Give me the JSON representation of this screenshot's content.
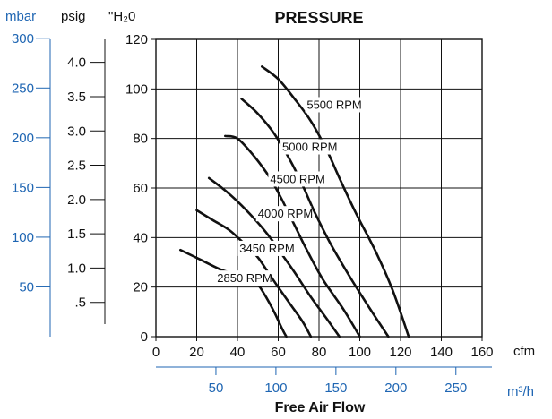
{
  "colors": {
    "ink": "#111111",
    "metric_axis": "#1f66b3",
    "grid": "#111111"
  },
  "chart_data": {
    "type": "line",
    "title": "PRESSURE",
    "xlabel": "Free Air Flow",
    "x_units": {
      "primary": "cfm",
      "secondary": "m³/h"
    },
    "y_units": {
      "primary": "\"H₂0",
      "secondary": "psig",
      "tertiary": "mbar"
    },
    "xlim": [
      0,
      160
    ],
    "ylim": [
      0,
      120
    ],
    "grid": true,
    "x_ticks": [
      "0",
      "20",
      "40",
      "60",
      "80",
      "100",
      "120",
      "140",
      "160"
    ],
    "y_ticks": [
      "0",
      "20",
      "40",
      "60",
      "80",
      "100",
      "120"
    ],
    "psig_ticks": [
      {
        "label": ".5",
        "value": 0.5
      },
      {
        "label": "1.0",
        "value": 1.0
      },
      {
        "label": "1.5",
        "value": 1.5
      },
      {
        "label": "2.0",
        "value": 2.0
      },
      {
        "label": "2.5",
        "value": 2.5
      },
      {
        "label": "3.0",
        "value": 3.0
      },
      {
        "label": "3.5",
        "value": 3.5
      },
      {
        "label": "4.0",
        "value": 4.0
      }
    ],
    "mbar_ticks": [
      {
        "label": "50",
        "value": 50
      },
      {
        "label": "100",
        "value": 100
      },
      {
        "label": "150",
        "value": 150
      },
      {
        "label": "200",
        "value": 200
      },
      {
        "label": "250",
        "value": 250
      },
      {
        "label": "300",
        "value": 300
      }
    ],
    "m3h_ticks": [
      {
        "label": "50",
        "value": 50
      },
      {
        "label": "100",
        "value": 100
      },
      {
        "label": "150",
        "value": 150
      },
      {
        "label": "200",
        "value": 200
      },
      {
        "label": "250",
        "value": 250
      }
    ],
    "series": [
      {
        "name": "2850 RPM",
        "points": [
          [
            12,
            35
          ],
          [
            22,
            31
          ],
          [
            32,
            27
          ],
          [
            40,
            25
          ],
          [
            46,
            23
          ],
          [
            50,
            21
          ],
          [
            54,
            16
          ],
          [
            58,
            10
          ],
          [
            62,
            3
          ],
          [
            64,
            0
          ]
        ],
        "label_at": [
          30,
          22
        ]
      },
      {
        "name": "3450 RPM",
        "points": [
          [
            20,
            51
          ],
          [
            28,
            47
          ],
          [
            36,
            43
          ],
          [
            44,
            37
          ],
          [
            50,
            32
          ],
          [
            55,
            26
          ],
          [
            60,
            20
          ],
          [
            66,
            13
          ],
          [
            72,
            6
          ],
          [
            76,
            0
          ]
        ],
        "label_at": [
          41,
          34
        ]
      },
      {
        "name": "4000 RPM",
        "points": [
          [
            26,
            64
          ],
          [
            34,
            59
          ],
          [
            42,
            53
          ],
          [
            50,
            46
          ],
          [
            56,
            40
          ],
          [
            62,
            33
          ],
          [
            68,
            26
          ],
          [
            76,
            16
          ],
          [
            84,
            7
          ],
          [
            90,
            0
          ]
        ],
        "label_at": [
          50,
          48
        ]
      },
      {
        "name": "4500 RPM",
        "points": [
          [
            34,
            81
          ],
          [
            40,
            80
          ],
          [
            48,
            73
          ],
          [
            56,
            64
          ],
          [
            62,
            55
          ],
          [
            68,
            45
          ],
          [
            74,
            35
          ],
          [
            82,
            23
          ],
          [
            92,
            11
          ],
          [
            100,
            0
          ]
        ],
        "label_at": [
          56,
          62
        ]
      },
      {
        "name": "5000 RPM",
        "points": [
          [
            42,
            96
          ],
          [
            50,
            90
          ],
          [
            58,
            82
          ],
          [
            66,
            71
          ],
          [
            72,
            61
          ],
          [
            78,
            50
          ],
          [
            86,
            37
          ],
          [
            96,
            23
          ],
          [
            106,
            10
          ],
          [
            114,
            0
          ]
        ],
        "label_at": [
          62,
          75
        ]
      },
      {
        "name": "5500 RPM",
        "points": [
          [
            52,
            109
          ],
          [
            60,
            104
          ],
          [
            68,
            96
          ],
          [
            76,
            87
          ],
          [
            84,
            75
          ],
          [
            90,
            64
          ],
          [
            98,
            50
          ],
          [
            108,
            34
          ],
          [
            116,
            19
          ],
          [
            124,
            0
          ]
        ],
        "label_at": [
          74,
          92
        ]
      }
    ]
  }
}
